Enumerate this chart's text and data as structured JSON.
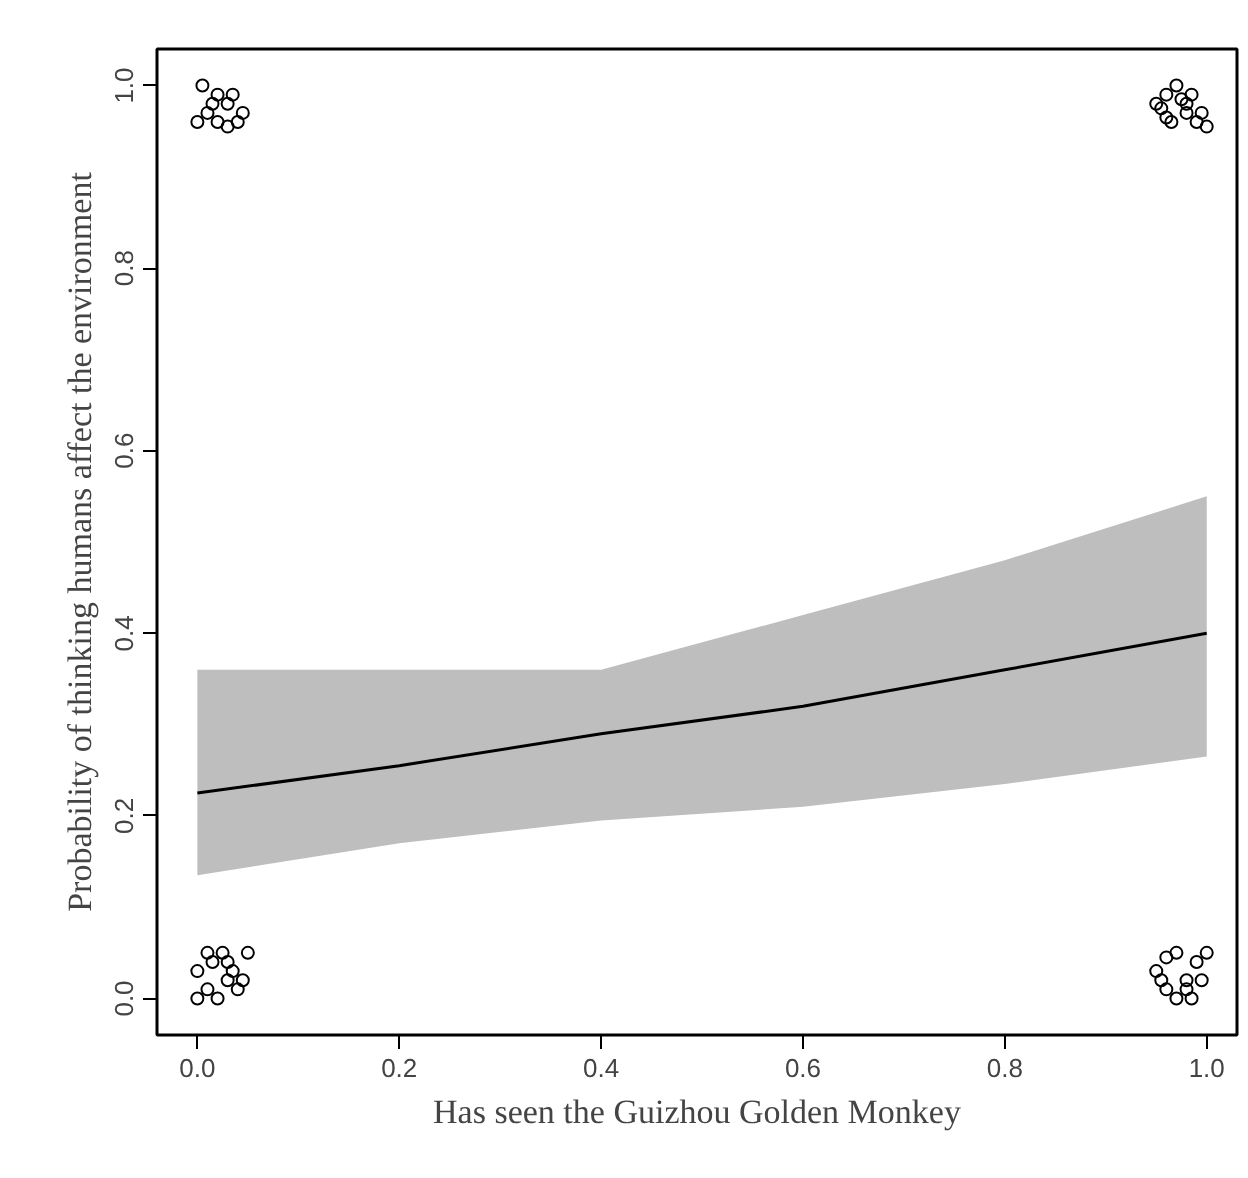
{
  "chart_data": {
    "type": "scatter",
    "xlabel": "Has seen the Guizhou Golden Monkey",
    "ylabel": "Probability of thinking humans affect the environment",
    "xlim": [
      -0.04,
      1.03
    ],
    "ylim": [
      -0.04,
      1.04
    ],
    "xticks": [
      {
        "value": 0,
        "label": "0.0"
      },
      0.2,
      0.4,
      0.6,
      0.8,
      {
        "value": 1,
        "label": "1.0"
      }
    ],
    "yticks": [
      {
        "value": 0,
        "label": "0.0"
      },
      0.2,
      0.4,
      0.6,
      0.8,
      {
        "value": 1,
        "label": "1.0"
      }
    ],
    "grid": false,
    "series": [
      {
        "type": "line",
        "color": "#000000",
        "x": [
          0,
          0.2,
          0.4,
          0.6,
          0.8,
          1.0
        ],
        "values": [
          0.225,
          0.255,
          0.29,
          0.32,
          0.36,
          0.4
        ],
        "lower": [
          0.135,
          0.17,
          0.195,
          0.21,
          0.235,
          0.265
        ],
        "upper": [
          0.36,
          0.36,
          0.36,
          0.42,
          0.48,
          0.55
        ]
      },
      {
        "marker": "circle",
        "color": "#000000",
        "x": [
          0.0,
          0.01,
          0.02,
          0.03,
          0.04,
          0.05,
          0.0,
          0.015,
          0.025,
          0.035,
          0.045,
          0.01,
          0.03,
          0.0,
          0.01,
          0.02,
          0.03,
          0.04,
          0.005,
          0.02,
          0.035,
          0.045,
          0.015,
          0.03,
          0.95,
          0.96,
          0.97,
          0.98,
          0.99,
          1.0,
          0.955,
          0.965,
          0.975,
          0.985,
          0.995,
          0.96,
          0.98,
          0.95,
          0.96,
          0.97,
          0.98,
          0.99,
          1.0,
          0.955,
          0.97,
          0.985,
          0.995,
          0.96,
          0.98
        ],
        "values": [
          0.0,
          0.01,
          0.0,
          0.02,
          0.01,
          0.05,
          0.03,
          0.04,
          0.05,
          0.03,
          0.02,
          0.05,
          0.04,
          0.96,
          0.97,
          0.99,
          0.98,
          0.96,
          1.0,
          0.96,
          0.99,
          0.97,
          0.98,
          0.955,
          0.98,
          0.99,
          1.0,
          0.97,
          0.96,
          0.955,
          0.975,
          0.96,
          0.985,
          0.99,
          0.97,
          0.965,
          0.98,
          0.03,
          0.01,
          0.0,
          0.02,
          0.04,
          0.05,
          0.02,
          0.05,
          0.0,
          0.02,
          0.045,
          0.01
        ]
      }
    ]
  }
}
